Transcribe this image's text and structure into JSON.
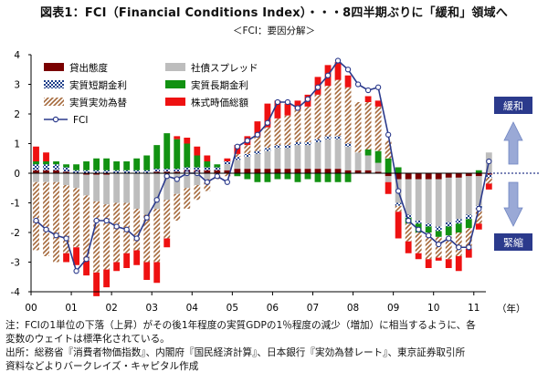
{
  "title": "図表1：FCI（Financial Conditions Index）・・・8四半期ぶりに「緩和」領域へ",
  "subtitle": "＜FCI：要因分解＞",
  "side_labels": {
    "ease": "緩和",
    "tight": "緊縮"
  },
  "x_unit": "（年）",
  "notes": [
    "注：FCIの1単位の下落（上昇）がその後1年程度の実質GDPの1％程度の減少（増加）に相当するように、各",
    "変数のウェイトは標準化されている。",
    "出所：総務省『消費者物価指数』、内閣府『国民経済計算』、日本銀行『実効為替レート』、東京証券取引所",
    "資料などよりバークレイズ・キャピタル作成"
  ],
  "colors": {
    "lending": "#7a0000",
    "short_rate": "#1e3f8a",
    "fx": "#a4683a",
    "spread": "#bdbdbd",
    "long_rate": "#129212",
    "equity": "#ee1111",
    "fci": "#2b3a8c",
    "arrow": "#7d91c7"
  },
  "chart_data": {
    "type": "bar",
    "stacked": true,
    "ylim": [
      -4,
      4
    ],
    "yticks": [
      -4,
      -3,
      -2,
      -1,
      0,
      1,
      2,
      3,
      4
    ],
    "xlim": [
      2000,
      2011.3
    ],
    "year_ticks": [
      "00",
      "01",
      "02",
      "03",
      "04",
      "05",
      "06",
      "07",
      "08",
      "09",
      "10",
      "11"
    ],
    "x": [
      "2000Q1",
      "2000Q2",
      "2000Q3",
      "2000Q4",
      "2001Q1",
      "2001Q2",
      "2001Q3",
      "2001Q4",
      "2002Q1",
      "2002Q2",
      "2002Q3",
      "2002Q4",
      "2003Q1",
      "2003Q2",
      "2003Q3",
      "2003Q4",
      "2004Q1",
      "2004Q2",
      "2004Q3",
      "2004Q4",
      "2005Q1",
      "2005Q2",
      "2005Q3",
      "2005Q4",
      "2006Q1",
      "2006Q2",
      "2006Q3",
      "2006Q4",
      "2007Q1",
      "2007Q2",
      "2007Q3",
      "2007Q4",
      "2008Q1",
      "2008Q2",
      "2008Q3",
      "2008Q4",
      "2009Q1",
      "2009Q2",
      "2009Q3",
      "2009Q4",
      "2010Q1",
      "2010Q2",
      "2010Q3",
      "2010Q4",
      "2011Q1",
      "2011Q2"
    ],
    "legend": [
      "貸出態度",
      "社債スプレッド",
      "実質短期金利",
      "実質長期金利",
      "実質実効為替",
      "株式時価総額",
      "FCI"
    ],
    "series": [
      {
        "name": "貸出態度",
        "values": [
          0.1,
          0.1,
          0.1,
          0.05,
          0.0,
          -0.05,
          -0.05,
          -0.05,
          0.0,
          0.0,
          0.0,
          0.0,
          0.05,
          0.05,
          0.05,
          0.1,
          0.1,
          0.1,
          0.1,
          0.1,
          0.15,
          0.15,
          0.15,
          0.15,
          0.15,
          0.15,
          0.15,
          0.15,
          0.15,
          0.15,
          0.15,
          0.1,
          0.1,
          0.1,
          0.05,
          -0.1,
          -0.2,
          -0.2,
          -0.2,
          -0.2,
          -0.2,
          -0.15,
          -0.15,
          -0.1,
          -0.1,
          -0.05
        ]
      },
      {
        "name": "社債スプレッド",
        "values": [
          -0.3,
          -0.3,
          -0.3,
          -0.4,
          -0.5,
          -0.7,
          -0.9,
          -1.0,
          -1.0,
          -1.0,
          -1.2,
          -1.4,
          -1.2,
          -0.9,
          -0.7,
          -0.5,
          -0.4,
          -0.2,
          0.0,
          0.2,
          0.3,
          0.4,
          0.5,
          0.6,
          0.7,
          0.7,
          0.8,
          0.8,
          0.9,
          1.0,
          1.0,
          0.8,
          0.6,
          0.5,
          0.3,
          -0.2,
          -0.8,
          -1.2,
          -1.4,
          -1.5,
          -1.6,
          -1.5,
          -1.4,
          -1.3,
          -1.0,
          0.7
        ]
      },
      {
        "name": "実質短期金利",
        "values": [
          0.2,
          0.2,
          0.2,
          0.15,
          0.1,
          0.1,
          0.1,
          0.1,
          0.1,
          0.1,
          0.1,
          0.1,
          0.1,
          0.1,
          0.1,
          0.1,
          0.1,
          0.1,
          0.1,
          0.1,
          0.1,
          0.1,
          0.1,
          0.1,
          0.1,
          0.1,
          0.1,
          0.1,
          0.1,
          0.1,
          0.1,
          0.1,
          0.0,
          0.0,
          0.0,
          0.0,
          -0.1,
          -0.1,
          -0.1,
          -0.1,
          -0.15,
          -0.15,
          -0.15,
          -0.15,
          -0.1,
          -0.1
        ]
      },
      {
        "name": "実質長期金利",
        "values": [
          0.1,
          0.1,
          0.1,
          0.1,
          0.2,
          0.3,
          0.4,
          0.4,
          0.3,
          0.3,
          0.4,
          0.5,
          0.8,
          1.2,
          1.0,
          0.8,
          0.4,
          0.2,
          0.1,
          0.0,
          -0.1,
          -0.2,
          -0.3,
          -0.3,
          -0.2,
          -0.2,
          -0.3,
          -0.2,
          -0.3,
          -0.3,
          -0.3,
          -0.3,
          0.0,
          0.2,
          0.4,
          0.5,
          0.2,
          -0.2,
          -0.3,
          -0.2,
          -0.2,
          -0.3,
          -0.3,
          -0.3,
          0.1,
          0.0
        ]
      },
      {
        "name": "実質実効為替",
        "values": [
          -2.3,
          -2.5,
          -2.7,
          -2.3,
          -2.0,
          -2.2,
          -2.4,
          -2.2,
          -2.0,
          -1.7,
          -1.4,
          -1.6,
          -1.8,
          -1.3,
          -0.9,
          -0.7,
          -0.5,
          -0.4,
          -0.2,
          -0.1,
          0.1,
          0.3,
          0.5,
          0.7,
          0.9,
          1.0,
          1.1,
          1.2,
          1.5,
          1.7,
          1.9,
          1.9,
          1.7,
          1.6,
          1.5,
          0.6,
          -0.2,
          -0.6,
          -0.7,
          -0.9,
          -0.7,
          -0.8,
          -0.8,
          -0.7,
          -0.5,
          -0.2
        ]
      },
      {
        "name": "株式時価総額",
        "values": [
          0.5,
          0.3,
          0.0,
          -0.3,
          -0.6,
          -0.5,
          -0.8,
          -0.6,
          -0.3,
          -0.5,
          -0.5,
          -0.6,
          -0.7,
          -0.3,
          0.1,
          0.2,
          0.3,
          0.2,
          0.0,
          0.1,
          0.3,
          0.3,
          0.5,
          0.8,
          0.6,
          0.4,
          0.3,
          0.4,
          0.6,
          0.7,
          0.6,
          0.4,
          0.0,
          0.2,
          0.2,
          -0.4,
          -0.9,
          -0.4,
          -0.2,
          -0.3,
          -0.1,
          -0.3,
          -0.5,
          -0.3,
          -0.2,
          -0.2
        ]
      },
      {
        "name": "FCI",
        "values": [
          -1.6,
          -1.9,
          -2.1,
          -2.2,
          -3.3,
          -2.9,
          -1.6,
          -1.6,
          -1.8,
          -1.9,
          -2.2,
          -1.5,
          -0.9,
          -0.1,
          -0.2,
          0.0,
          0.0,
          -0.3,
          -0.1,
          -0.3,
          0.9,
          1.1,
          1.3,
          1.7,
          2.4,
          2.4,
          2.2,
          2.5,
          2.9,
          3.3,
          3.8,
          3.5,
          3.0,
          2.8,
          2.9,
          1.3,
          -0.6,
          -1.6,
          -1.9,
          -2.1,
          -2.4,
          -2.2,
          -2.5,
          -2.5,
          -1.2,
          0.4
        ],
        "type": "line"
      }
    ]
  }
}
